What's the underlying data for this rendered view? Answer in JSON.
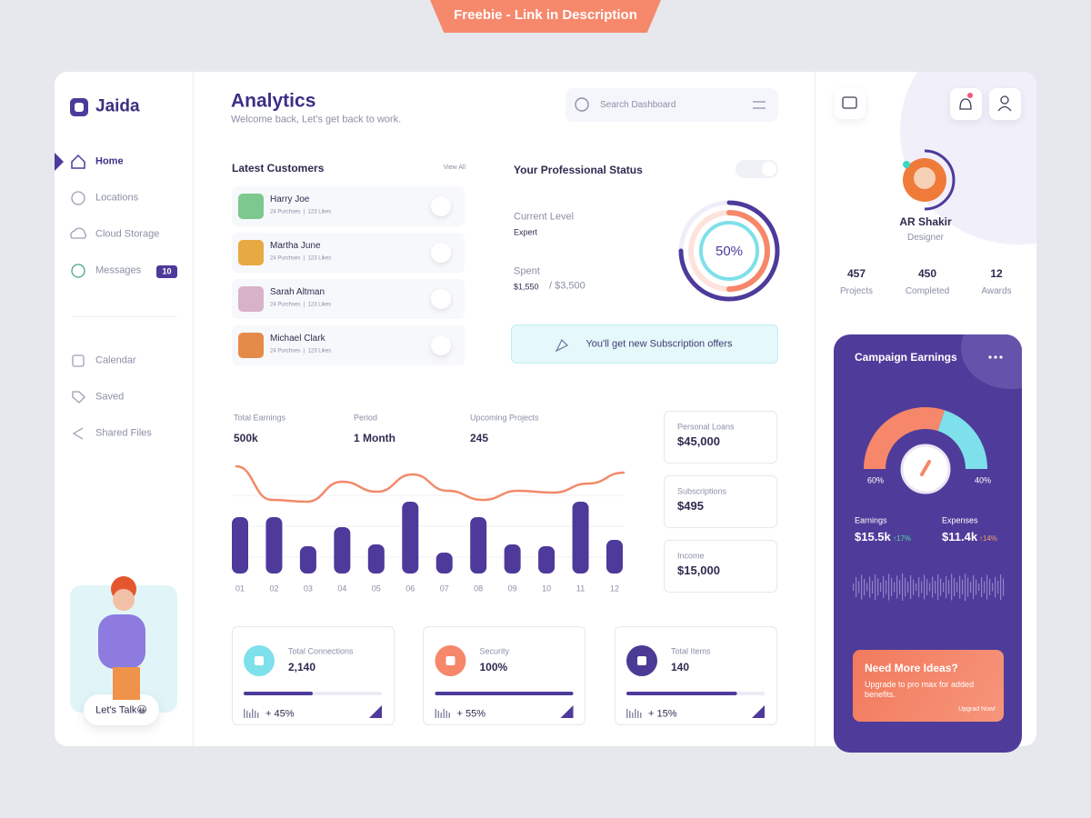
{
  "banner": "Freebie - Link in Description",
  "sidebar": {
    "brand": "Jaida",
    "nav": [
      "Home",
      "Locations",
      "Cloud Storage",
      "Messages"
    ],
    "messages_badge": 10,
    "nav2": [
      "Calendar",
      "Saved",
      "Shared Files"
    ],
    "cta": "Let's Talk😀"
  },
  "header": {
    "title": "Analytics",
    "subtitle": "Welcome back, Let's get back to work.",
    "search_placeholder": "Search Dashboard"
  },
  "customers": {
    "title": "Latest Customers",
    "link": "View All",
    "rows": [
      {
        "name": "Harry Joe",
        "meta": "24 Purchses  |  123 Likes"
      },
      {
        "name": "Martha June",
        "meta": "24 Purchses  |  123 Likes"
      },
      {
        "name": "Sarah Altman",
        "meta": "24 Purchses  |  123 Likes"
      },
      {
        "name": "Michael Clark",
        "meta": "24 Purchses  |  123 Likes"
      }
    ]
  },
  "status": {
    "title": "Your Professional Status",
    "level_label": "Current Level",
    "level": "Expert",
    "spent_label": "Spent",
    "spent": "$1,550",
    "spent_total": "/ $3,500",
    "progress": {
      "value": 50,
      "label": "50%"
    },
    "offer": "You'll get new Subscription offers"
  },
  "earnings": {
    "stats": [
      {
        "label": "Total Earnings",
        "value": "500k"
      },
      {
        "label": "Period",
        "value": "1 Month"
      },
      {
        "label": "Upcoming Projects",
        "value": "245"
      }
    ],
    "categories": [
      "01",
      "02",
      "03",
      "04",
      "05",
      "06",
      "07",
      "08",
      "09",
      "10",
      "11",
      "12"
    ],
    "bars": [
      62,
      62,
      30,
      51,
      32,
      79,
      23,
      62,
      32,
      30,
      79,
      37
    ],
    "line": [
      47,
      10,
      8,
      30,
      19,
      38,
      20,
      10,
      20,
      18,
      28,
      40
    ]
  },
  "side_stats": [
    {
      "label": "Personal Loans",
      "value": "$45,000"
    },
    {
      "label": "Subscriptions",
      "value": "$495"
    },
    {
      "label": "Income",
      "value": "$15,000"
    }
  ],
  "cards": [
    {
      "label": "Total Connections",
      "value": "2,140",
      "change": "+ 45%"
    },
    {
      "label": "Security",
      "value": "100%",
      "change": "+ 55%"
    },
    {
      "label": "Total Items",
      "value": "140",
      "change": "+ 15%"
    }
  ],
  "profile": {
    "name": "AR Shakir",
    "role": "Designer",
    "stats": [
      {
        "value": 457,
        "label": "Projects"
      },
      {
        "value": 450,
        "label": "Completed"
      },
      {
        "value": 12,
        "label": "Awards"
      }
    ]
  },
  "campaign": {
    "title": "Campaign Earnings",
    "gauge": [
      {
        "value": 60,
        "label": "60%"
      },
      {
        "value": 40,
        "label": "40%"
      }
    ],
    "earnings_label": "Earnings",
    "earnings": "$15.5k",
    "earnings_change": "↑17%",
    "expenses_label": "Expenses",
    "expenses": "$11.4k",
    "expenses_change": "↑14%"
  },
  "promo": {
    "title": "Need More Ideas?",
    "text": "Upgrade to pro max for added benefits.",
    "link": "Upgrad Now!"
  }
}
